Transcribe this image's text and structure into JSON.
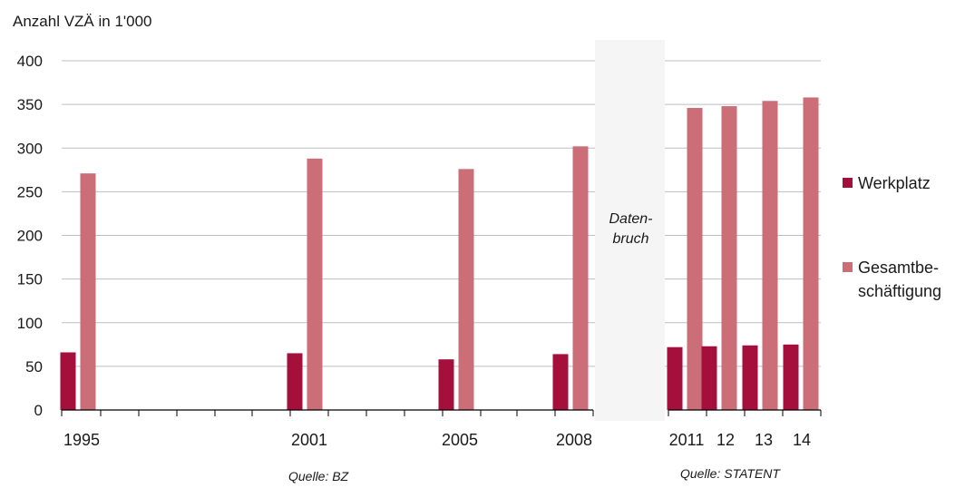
{
  "colors": {
    "werkplatz": "#a50f3c",
    "gesamt": "#cc6e78",
    "grid": "#bfbfbf",
    "axis": "#000000",
    "break_fill": "#f5f5f5"
  },
  "labels": {
    "ylabel": "Anzahl VZÄ in 1'000",
    "legend_1": "Werkplatz",
    "legend_2a": "Gesamtbe-",
    "legend_2b": "schäftigung",
    "break_1": "Daten-",
    "break_2": "bruch",
    "source_1": "Quelle: BZ",
    "source_2": "Quelle: STATENT"
  },
  "chart_data": {
    "type": "bar",
    "ylabel": "Anzahl VZÄ in 1'000",
    "ylim": [
      0,
      400
    ],
    "yticks": [
      0,
      50,
      100,
      150,
      200,
      250,
      300,
      350,
      400
    ],
    "grid": true,
    "legend_position": "right",
    "categories": [
      "1995",
      "2001",
      "2005",
      "2008",
      "2011",
      "12",
      "13",
      "14"
    ],
    "series": [
      {
        "name": "Werkplatz",
        "values": [
          66,
          65,
          58,
          64,
          72,
          73,
          74,
          75
        ]
      },
      {
        "name": "Gesamtbeschäftigung",
        "values": [
          271,
          288,
          276,
          302,
          346,
          348,
          354,
          358
        ]
      }
    ],
    "annotations": [
      "Daten-bruch",
      "Quelle: BZ",
      "Quelle: STATENT"
    ]
  }
}
